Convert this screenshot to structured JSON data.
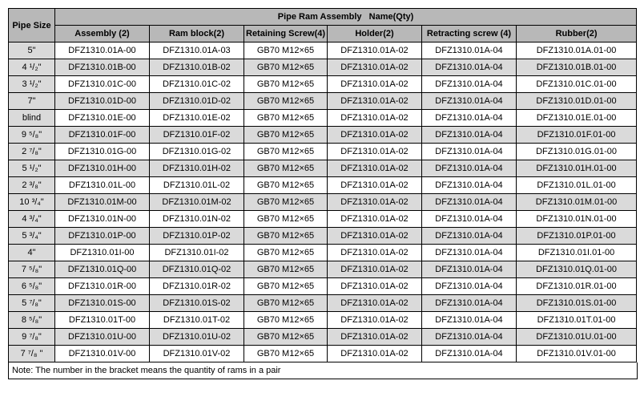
{
  "table": {
    "header_top_left": "Pipe Size",
    "header_top_right": "Pipe Ram Assembly   Name(Qty)",
    "columns": [
      "Assembly (2)",
      "Ram block(2)",
      "Retaining Screw(4)",
      "Holder(2)",
      "Retracting screw (4)",
      "Rubber(2)"
    ],
    "rows": [
      {
        "size": "5\"",
        "alt": false,
        "cells": [
          "DFZ1310.01A-00",
          "DFZ1310.01A-03",
          "GB70 M12×65",
          "DFZ1310.01A-02",
          "DFZ1310.01A-04",
          "DFZ1310.01A.01-00"
        ]
      },
      {
        "size": "4 ¹/₂\"",
        "alt": true,
        "cells": [
          "DFZ1310.01B-00",
          "DFZ1310.01B-02",
          "GB70 M12×65",
          "DFZ1310.01A-02",
          "DFZ1310.01A-04",
          "DFZ1310.01B.01-00"
        ]
      },
      {
        "size": "3 ¹/₂\"",
        "alt": false,
        "cells": [
          "DFZ1310.01C-00",
          "DFZ1310.01C-02",
          "GB70 M12×65",
          "DFZ1310.01A-02",
          "DFZ1310.01A-04",
          "DFZ1310.01C.01-00"
        ]
      },
      {
        "size": "7\"",
        "alt": true,
        "cells": [
          "DFZ1310.01D-00",
          "DFZ1310.01D-02",
          "GB70 M12×65",
          "DFZ1310.01A-02",
          "DFZ1310.01A-04",
          "DFZ1310.01D.01-00"
        ]
      },
      {
        "size": "blind",
        "alt": false,
        "cells": [
          "DFZ1310.01E-00",
          "DFZ1310.01E-02",
          "GB70 M12×65",
          "DFZ1310.01A-02",
          "DFZ1310.01A-04",
          "DFZ1310.01E.01-00"
        ]
      },
      {
        "size": "9 ⁵/₈\"",
        "alt": true,
        "cells": [
          "DFZ1310.01F-00",
          "DFZ1310.01F-02",
          "GB70 M12×65",
          "DFZ1310.01A-02",
          "DFZ1310.01A-04",
          "DFZ1310.01F.01-00"
        ]
      },
      {
        "size": "2 ⁷/₈\"",
        "alt": false,
        "cells": [
          "DFZ1310.01G-00",
          "DFZ1310.01G-02",
          "GB70 M12×65",
          "DFZ1310.01A-02",
          "DFZ1310.01A-04",
          "DFZ1310.01G.01-00"
        ]
      },
      {
        "size": "5 ¹/₂\"",
        "alt": true,
        "cells": [
          "DFZ1310.01H-00",
          "DFZ1310.01H-02",
          "GB70 M12×65",
          "DFZ1310.01A-02",
          "DFZ1310.01A-04",
          "DFZ1310.01H.01-00"
        ]
      },
      {
        "size": "2 ³/₈\"",
        "alt": false,
        "cells": [
          "DFZ1310.01L-00",
          "DFZ1310.01L-02",
          "GB70 M12×65",
          "DFZ1310.01A-02",
          "DFZ1310.01A-04",
          "DFZ1310.01L.01-00"
        ]
      },
      {
        "size": "10 ³/₄\"",
        "alt": true,
        "cells": [
          "DFZ1310.01M-00",
          "DFZ1310.01M-02",
          "GB70 M12×65",
          "DFZ1310.01A-02",
          "DFZ1310.01A-04",
          "DFZ1310.01M.01-00"
        ]
      },
      {
        "size": "4 ³/₄\"",
        "alt": false,
        "cells": [
          "DFZ1310.01N-00",
          "DFZ1310.01N-02",
          "GB70 M12×65",
          "DFZ1310.01A-02",
          "DFZ1310.01A-04",
          "DFZ1310.01N.01-00"
        ]
      },
      {
        "size": "5 ³/₄\"",
        "alt": true,
        "cells": [
          "DFZ1310.01P-00",
          "DFZ1310.01P-02",
          "GB70 M12×65",
          "DFZ1310.01A-02",
          "DFZ1310.01A-04",
          "DFZ1310.01P.01-00"
        ]
      },
      {
        "size": "4\"",
        "alt": false,
        "cells": [
          "DFZ1310.01I-00",
          "DFZ1310.01I-02",
          "GB70 M12×65",
          "DFZ1310.01A-02",
          "DFZ1310.01A-04",
          "DFZ1310.01I.01-00"
        ]
      },
      {
        "size": "7 ⁵/₈\"",
        "alt": true,
        "cells": [
          "DFZ1310.01Q-00",
          "DFZ1310.01Q-02",
          "GB70 M12×65",
          "DFZ1310.01A-02",
          "DFZ1310.01A-04",
          "DFZ1310.01Q.01-00"
        ]
      },
      {
        "size": "6 ⁵/₈\"",
        "alt": false,
        "cells": [
          "DFZ1310.01R-00",
          "DFZ1310.01R-02",
          "GB70 M12×65",
          "DFZ1310.01A-02",
          "DFZ1310.01A-04",
          "DFZ1310.01R.01-00"
        ]
      },
      {
        "size": "5 ⁷/₈\"",
        "alt": true,
        "cells": [
          "DFZ1310.01S-00",
          "DFZ1310.01S-02",
          "GB70 M12×65",
          "DFZ1310.01A-02",
          "DFZ1310.01A-04",
          "DFZ1310.01S.01-00"
        ]
      },
      {
        "size": "8 ⁵/₈\"",
        "alt": false,
        "cells": [
          "DFZ1310.01T-00",
          "DFZ1310.01T-02",
          "GB70 M12×65",
          "DFZ1310.01A-02",
          "DFZ1310.01A-04",
          "DFZ1310.01T.01-00"
        ]
      },
      {
        "size": "9 ⁷/₈\"",
        "alt": true,
        "cells": [
          "DFZ1310.01U-00",
          "DFZ1310.01U-02",
          "GB70 M12×65",
          "DFZ1310.01A-02",
          "DFZ1310.01A-04",
          "DFZ1310.01U.01-00"
        ]
      },
      {
        "size": "7 ⁷/₈ \"",
        "alt": false,
        "cells": [
          "DFZ1310.01V-00",
          "DFZ1310.01V-02",
          "GB70 M12×65",
          "DFZ1310.01A-02",
          "DFZ1310.01A-04",
          "DFZ1310.01V.01-00"
        ]
      }
    ],
    "note": "Note: The number in the bracket means the quantity of rams in a pair"
  },
  "colors": {
    "header_bg": "#b8b8b8",
    "alt_bg": "#dadada",
    "border": "#000000",
    "text": "#000000"
  },
  "typography": {
    "font_family": "Arial, sans-serif",
    "font_size_pt": 8.5,
    "header_weight": "bold"
  }
}
